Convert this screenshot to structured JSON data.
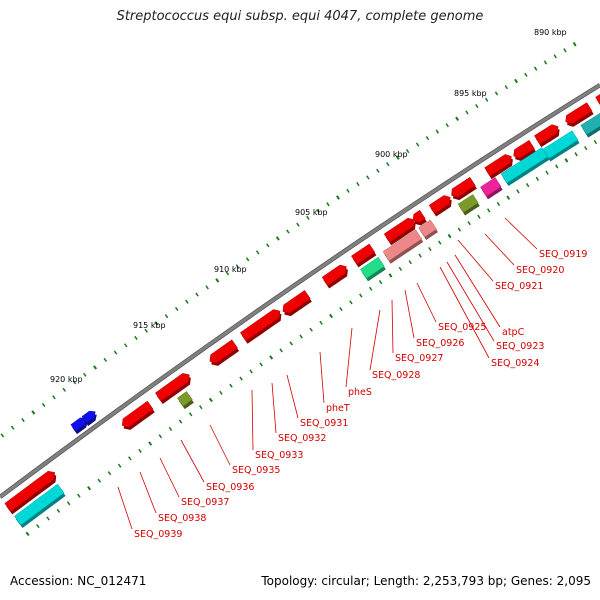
{
  "title": "Streptococcus equi subsp. equi 4047, complete genome",
  "footer": {
    "accession": "Accession: NC_012471",
    "topology": "Topology: circular; Length: 2,253,793 bp; Genes: 2,095"
  },
  "scale_ticks": [
    "890 kbp",
    "895 kbp",
    "900 kbp",
    "905 kbp",
    "910 kbp",
    "915 kbp",
    "920 kbp"
  ],
  "gene_labels": [
    "SEQ_0919",
    "SEQ_0920",
    "SEQ_0921",
    "atpC",
    "SEQ_0923",
    "SEQ_0924",
    "SEQ_0925",
    "SEQ_0926",
    "SEQ_0927",
    "SEQ_0928",
    "pheS",
    "pheT",
    "SEQ_0931",
    "SEQ_0932",
    "SEQ_0933",
    "SEQ_0935",
    "SEQ_0936",
    "SEQ_0937",
    "SEQ_0938",
    "SEQ_0939"
  ],
  "colors": {
    "backbone": "#808080",
    "gene_red": "#ee0000",
    "cyan": "#00d8d8",
    "teal": "#20b0b0",
    "magenta": "#ee2299",
    "olive": "#7a9a2a",
    "pink": "#ee8888",
    "green": "#22dd88",
    "blue": "#1010ee",
    "tick_green": "#1a7a1a",
    "label_red": "#d40000"
  }
}
